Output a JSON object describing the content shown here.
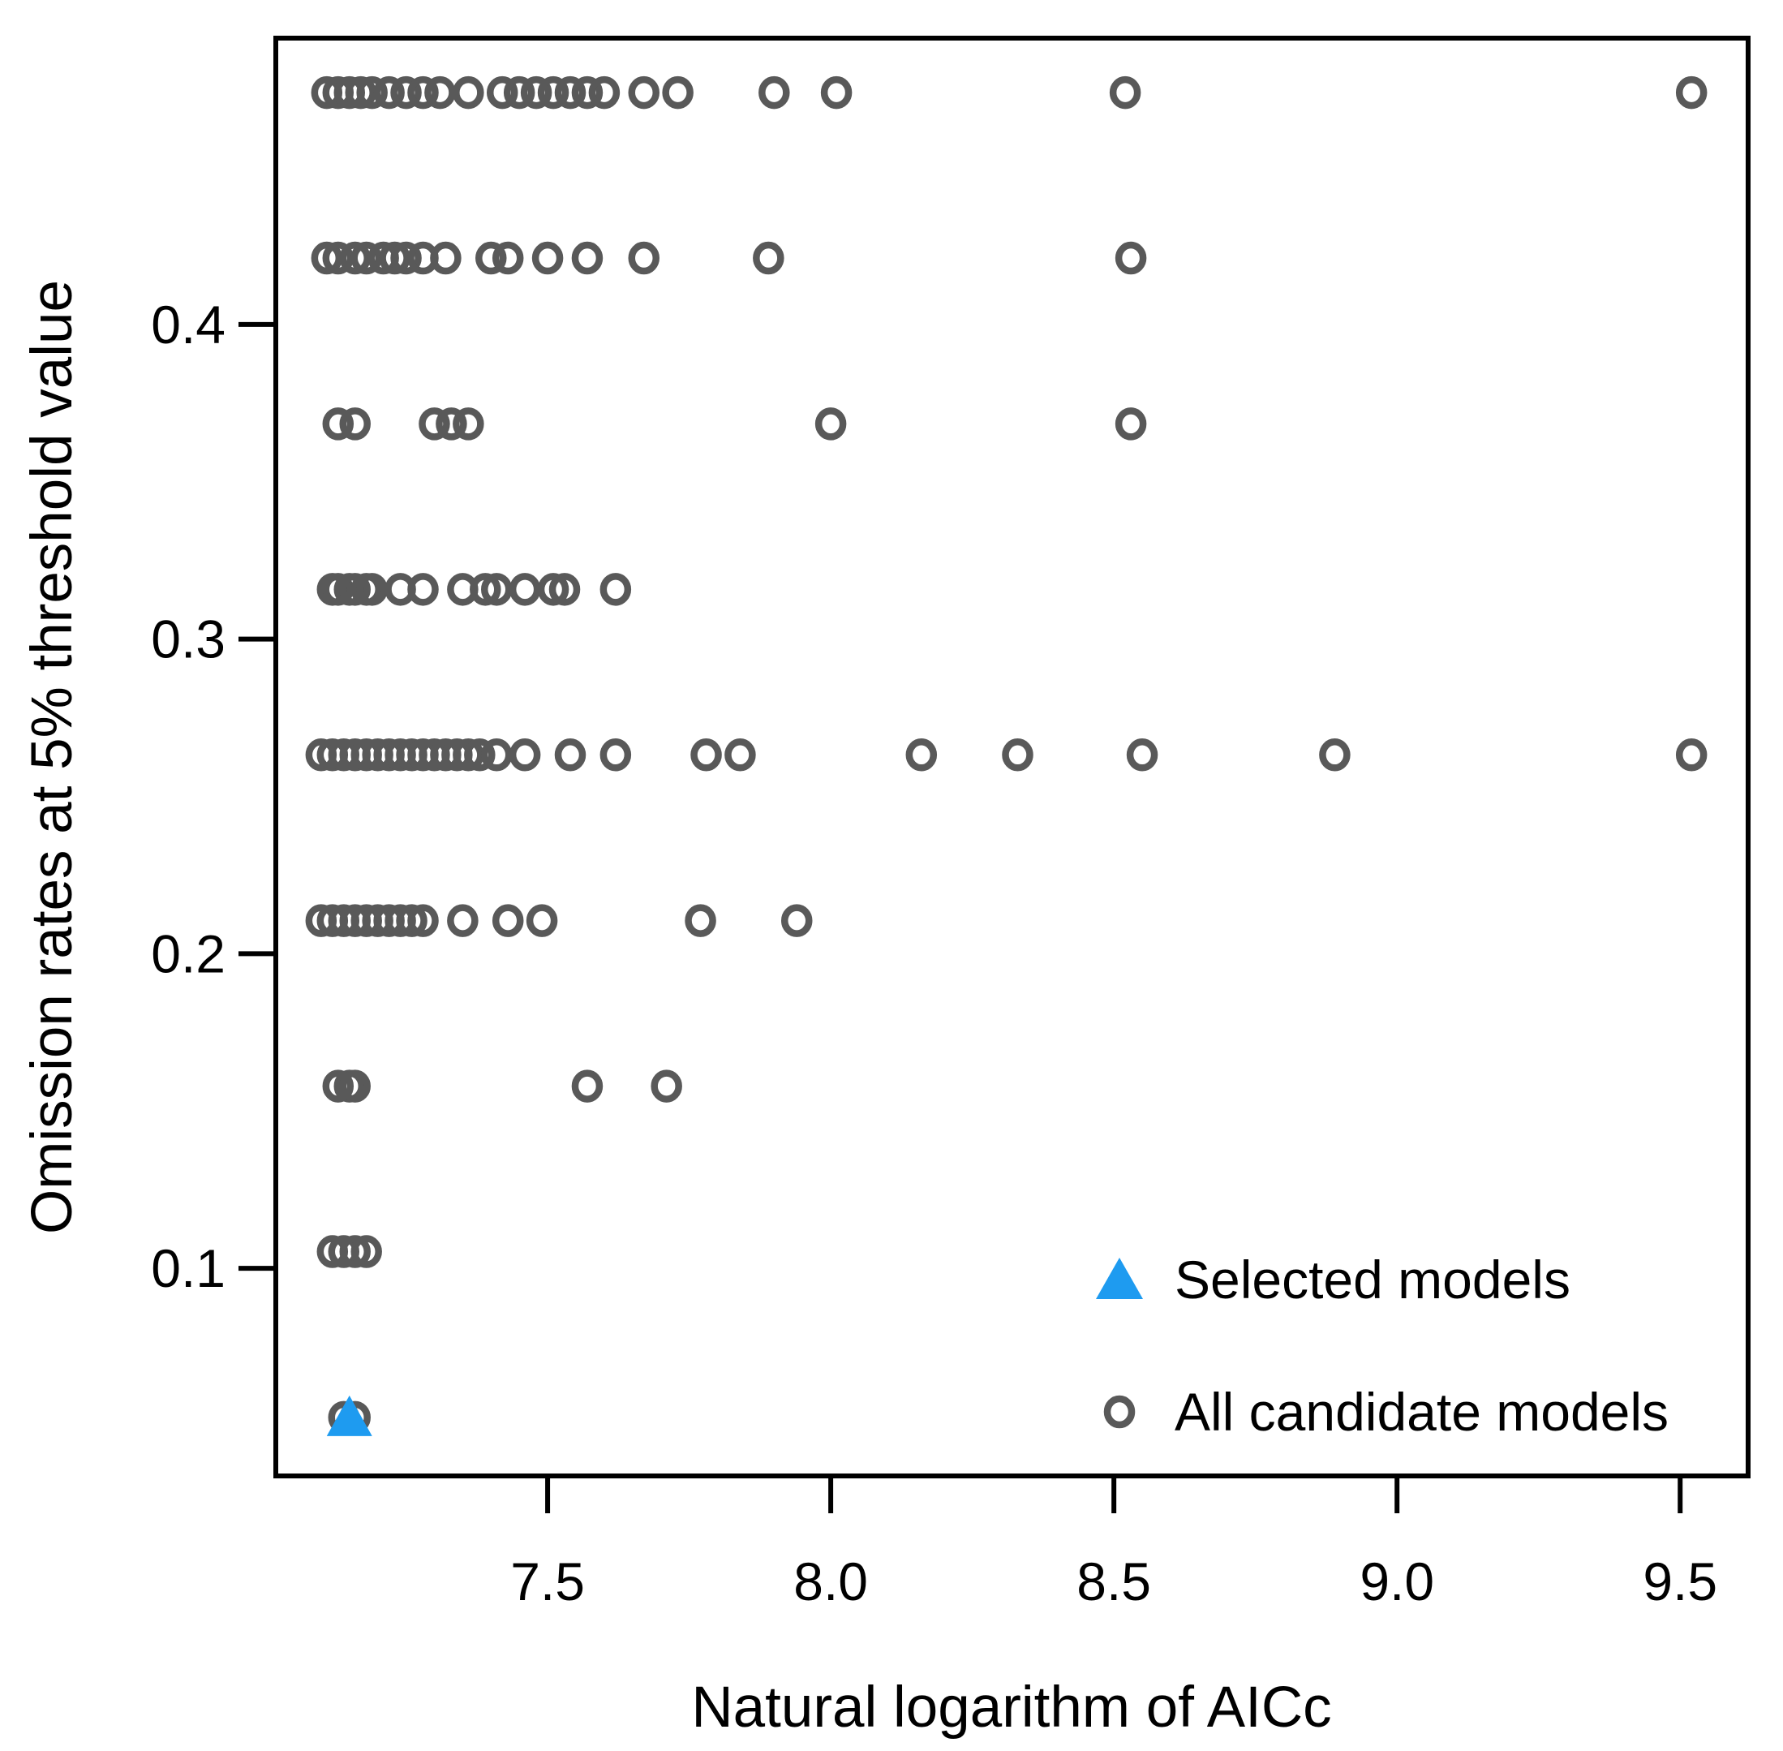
{
  "figure": {
    "background": "#ffffff",
    "text_color": "#000000"
  },
  "chart_data": {
    "type": "scatter",
    "title": "",
    "xlabel": "Natural logarithm of AICc",
    "ylabel": "Omission rates at 5% threshold value",
    "xlim": [
      7.02,
      9.62
    ],
    "ylim": [
      0.034,
      0.491
    ],
    "x_ticks": [
      7.5,
      8.0,
      8.5,
      9.0,
      9.5
    ],
    "y_ticks": [
      0.1,
      0.2,
      0.3,
      0.4
    ],
    "grid": false,
    "legend": {
      "position": "inside-bottom-right",
      "entries": [
        {
          "label": "Selected models",
          "marker": "filled-triangle",
          "color": "#1E9BF0"
        },
        {
          "label": "All candidate models",
          "marker": "open-circle",
          "color": "#595959"
        }
      ]
    },
    "series": [
      {
        "name": "All candidate models",
        "marker": "open-circle",
        "color": "#595959",
        "points": [
          [
            7.11,
            0.4737
          ],
          [
            7.13,
            0.4737
          ],
          [
            7.15,
            0.4737
          ],
          [
            7.17,
            0.4737
          ],
          [
            7.19,
            0.4737
          ],
          [
            7.22,
            0.4737
          ],
          [
            7.25,
            0.4737
          ],
          [
            7.28,
            0.4737
          ],
          [
            7.31,
            0.4737
          ],
          [
            7.36,
            0.4737
          ],
          [
            7.42,
            0.4737
          ],
          [
            7.45,
            0.4737
          ],
          [
            7.48,
            0.4737
          ],
          [
            7.51,
            0.4737
          ],
          [
            7.54,
            0.4737
          ],
          [
            7.57,
            0.4737
          ],
          [
            7.6,
            0.4737
          ],
          [
            7.67,
            0.4737
          ],
          [
            7.73,
            0.4737
          ],
          [
            7.9,
            0.4737
          ],
          [
            8.01,
            0.4737
          ],
          [
            8.52,
            0.4737
          ],
          [
            9.52,
            0.4737
          ],
          [
            7.11,
            0.4211
          ],
          [
            7.13,
            0.4211
          ],
          [
            7.16,
            0.4211
          ],
          [
            7.18,
            0.4211
          ],
          [
            7.21,
            0.4211
          ],
          [
            7.23,
            0.4211
          ],
          [
            7.25,
            0.4211
          ],
          [
            7.28,
            0.4211
          ],
          [
            7.32,
            0.4211
          ],
          [
            7.4,
            0.4211
          ],
          [
            7.43,
            0.4211
          ],
          [
            7.5,
            0.4211
          ],
          [
            7.57,
            0.4211
          ],
          [
            7.67,
            0.4211
          ],
          [
            7.89,
            0.4211
          ],
          [
            8.53,
            0.4211
          ],
          [
            7.13,
            0.3684
          ],
          [
            7.16,
            0.3684
          ],
          [
            7.3,
            0.3684
          ],
          [
            7.33,
            0.3684
          ],
          [
            7.36,
            0.3684
          ],
          [
            8.0,
            0.3684
          ],
          [
            8.53,
            0.3684
          ],
          [
            7.12,
            0.3158
          ],
          [
            7.13,
            0.3158
          ],
          [
            7.15,
            0.3158
          ],
          [
            7.16,
            0.3158
          ],
          [
            7.18,
            0.3158
          ],
          [
            7.19,
            0.3158
          ],
          [
            7.24,
            0.3158
          ],
          [
            7.28,
            0.3158
          ],
          [
            7.35,
            0.3158
          ],
          [
            7.39,
            0.3158
          ],
          [
            7.41,
            0.3158
          ],
          [
            7.46,
            0.3158
          ],
          [
            7.51,
            0.3158
          ],
          [
            7.53,
            0.3158
          ],
          [
            7.62,
            0.3158
          ],
          [
            7.1,
            0.2632
          ],
          [
            7.12,
            0.2632
          ],
          [
            7.14,
            0.2632
          ],
          [
            7.16,
            0.2632
          ],
          [
            7.18,
            0.2632
          ],
          [
            7.2,
            0.2632
          ],
          [
            7.22,
            0.2632
          ],
          [
            7.24,
            0.2632
          ],
          [
            7.26,
            0.2632
          ],
          [
            7.28,
            0.2632
          ],
          [
            7.3,
            0.2632
          ],
          [
            7.32,
            0.2632
          ],
          [
            7.34,
            0.2632
          ],
          [
            7.36,
            0.2632
          ],
          [
            7.38,
            0.2632
          ],
          [
            7.41,
            0.2632
          ],
          [
            7.46,
            0.2632
          ],
          [
            7.54,
            0.2632
          ],
          [
            7.62,
            0.2632
          ],
          [
            7.78,
            0.2632
          ],
          [
            7.84,
            0.2632
          ],
          [
            8.16,
            0.2632
          ],
          [
            8.33,
            0.2632
          ],
          [
            8.55,
            0.2632
          ],
          [
            8.89,
            0.2632
          ],
          [
            9.52,
            0.2632
          ],
          [
            7.1,
            0.2105
          ],
          [
            7.12,
            0.2105
          ],
          [
            7.14,
            0.2105
          ],
          [
            7.16,
            0.2105
          ],
          [
            7.18,
            0.2105
          ],
          [
            7.2,
            0.2105
          ],
          [
            7.22,
            0.2105
          ],
          [
            7.24,
            0.2105
          ],
          [
            7.26,
            0.2105
          ],
          [
            7.28,
            0.2105
          ],
          [
            7.35,
            0.2105
          ],
          [
            7.43,
            0.2105
          ],
          [
            7.49,
            0.2105
          ],
          [
            7.77,
            0.2105
          ],
          [
            7.94,
            0.2105
          ],
          [
            7.13,
            0.1579
          ],
          [
            7.15,
            0.1579
          ],
          [
            7.16,
            0.1579
          ],
          [
            7.57,
            0.1579
          ],
          [
            7.71,
            0.1579
          ],
          [
            7.12,
            0.1053
          ],
          [
            7.14,
            0.1053
          ],
          [
            7.16,
            0.1053
          ],
          [
            7.18,
            0.1053
          ],
          [
            7.14,
            0.0526
          ],
          [
            7.16,
            0.0526
          ]
        ]
      },
      {
        "name": "Selected models",
        "marker": "filled-triangle",
        "color": "#1E9BF0",
        "points": [
          [
            7.15,
            0.0526
          ]
        ]
      }
    ]
  }
}
